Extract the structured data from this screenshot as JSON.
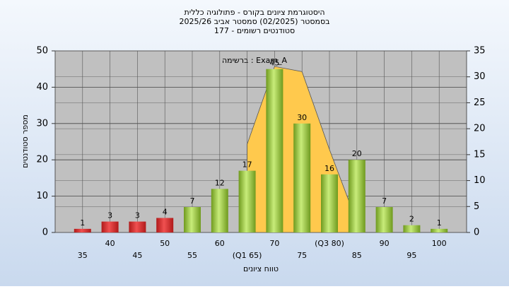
{
  "chart_data": {
    "type": "bar",
    "title": [
      "היסטוגרמת ציונים בקורס - פתולוגיה כללית",
      "בסמסטר  (02/2025)  סמסטר אביב 2025/26",
      "סטודנטים רשומים - 177"
    ],
    "annotation": "ברשימה : Exam_A",
    "x_label": "טווח ציונים",
    "y_label": "מספר סטודנטים",
    "categories": [
      "35",
      "40",
      "45",
      "50",
      "55",
      "60",
      "(Q1 65)",
      "70",
      "75",
      "(Q3 80)",
      "85",
      "90",
      "95",
      "100"
    ],
    "values": [
      1,
      3,
      3,
      4,
      7,
      12,
      17,
      45,
      30,
      16,
      20,
      7,
      2,
      1
    ],
    "colors": [
      "red",
      "red",
      "red",
      "red",
      "green",
      "green",
      "green",
      "green",
      "green",
      "green",
      "green",
      "green",
      "green",
      "green"
    ],
    "area_values": [
      null,
      null,
      null,
      null,
      null,
      null,
      17,
      32,
      31,
      16,
      2,
      null,
      null,
      null
    ],
    "area_color": "#ffc94d",
    "area_axis": "y2",
    "ylim": [
      0,
      50
    ],
    "yticks": [
      0,
      10,
      20,
      30,
      40,
      50
    ],
    "y2lim": [
      0,
      35
    ],
    "y2ticks": [
      0,
      5,
      10,
      15,
      20,
      25,
      30,
      35
    ],
    "grid": true
  }
}
